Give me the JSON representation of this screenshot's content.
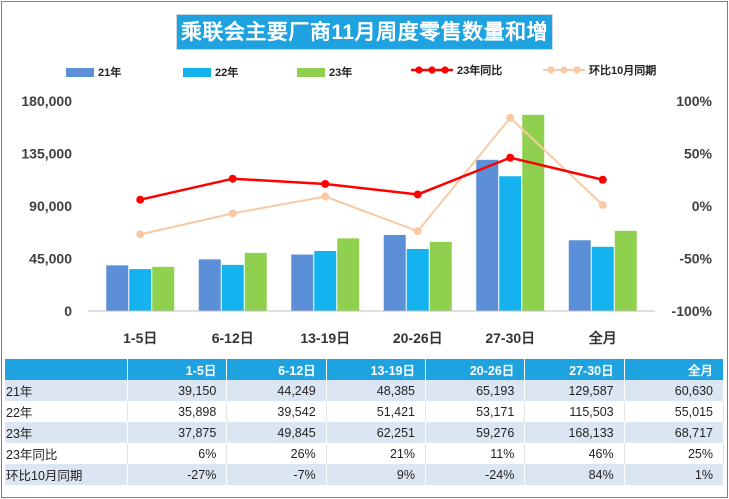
{
  "title": "乘联会主要厂商11月周度零售数量和增速",
  "legend": [
    {
      "key": "21",
      "label": "21年",
      "kind": "bar",
      "color": "#5b8fd8"
    },
    {
      "key": "22",
      "label": "22年",
      "kind": "bar",
      "color": "#14b3ef"
    },
    {
      "key": "23",
      "label": "23年",
      "kind": "bar",
      "color": "#8fd14f"
    },
    {
      "key": "yoy",
      "label": "23年同比",
      "kind": "line",
      "color": "#ff0000"
    },
    {
      "key": "mom",
      "label": "环比10月同期",
      "kind": "line",
      "color": "#f9c9a3"
    }
  ],
  "chart_data": {
    "type": "bar",
    "categories": [
      "1-5日",
      "6-12日",
      "13-19日",
      "20-26日",
      "27-30日",
      "全月"
    ],
    "series": [
      {
        "name": "21年",
        "type": "bar",
        "axis": "left",
        "color": "#5b8fd8",
        "values": [
          39150,
          44249,
          48385,
          65193,
          129587,
          60630
        ]
      },
      {
        "name": "22年",
        "type": "bar",
        "axis": "left",
        "color": "#14b3ef",
        "values": [
          35898,
          39542,
          51421,
          53171,
          115503,
          55015
        ]
      },
      {
        "name": "23年",
        "type": "bar",
        "axis": "left",
        "color": "#8fd14f",
        "values": [
          37875,
          49845,
          62251,
          59276,
          168133,
          68717
        ]
      },
      {
        "name": "23年同比",
        "type": "line",
        "axis": "right",
        "color": "#ff0000",
        "values": [
          6,
          26,
          21,
          11,
          46,
          25
        ]
      },
      {
        "name": "环比10月同期",
        "type": "line",
        "axis": "right",
        "color": "#f9c9a3",
        "values": [
          -27,
          -7,
          9,
          -24,
          84,
          1
        ]
      }
    ],
    "y_left": {
      "min": 0,
      "max": 180000,
      "ticks": [
        0,
        45000,
        90000,
        135000,
        180000
      ],
      "tick_labels": [
        "0",
        "45,000",
        "90,000",
        "135,000",
        "180,000"
      ]
    },
    "y_right": {
      "min": -100,
      "max": 100,
      "ticks": [
        -100,
        -50,
        0,
        50,
        100
      ],
      "tick_labels": [
        "-100%",
        "-50%",
        "0%",
        "50%",
        "100%"
      ]
    },
    "grid": false,
    "legend_position": "top"
  },
  "table": {
    "headers": [
      "",
      "1-5日",
      "6-12日",
      "13-19日",
      "20-26日",
      "27-30日",
      "全月"
    ],
    "rows": [
      [
        "21年",
        "39,150",
        "44,249",
        "48,385",
        "65,193",
        "129,587",
        "60,630"
      ],
      [
        "22年",
        "35,898",
        "39,542",
        "51,421",
        "53,171",
        "115,503",
        "55,015"
      ],
      [
        "23年",
        "37,875",
        "49,845",
        "62,251",
        "59,276",
        "168,133",
        "68,717"
      ],
      [
        "23年同比",
        "6%",
        "26%",
        "21%",
        "11%",
        "46%",
        "25%"
      ],
      [
        "环比10月同期",
        "-27%",
        "-7%",
        "9%",
        "-24%",
        "84%",
        "1%"
      ]
    ]
  }
}
